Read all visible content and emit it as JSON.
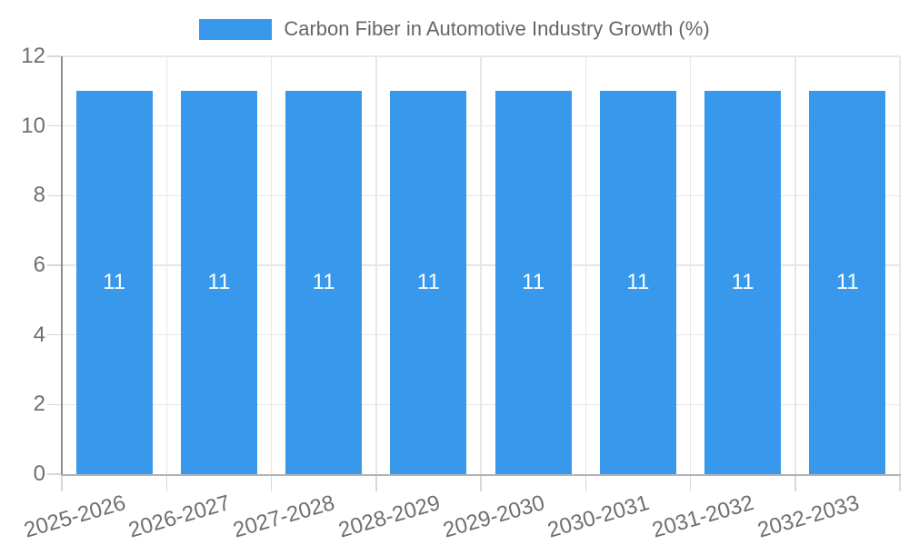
{
  "legend": {
    "label": "Carbon Fiber in Automotive Industry Growth (%)"
  },
  "chart_data": {
    "type": "bar",
    "title": "Carbon Fiber in Automotive Industry Growth (%)",
    "categories": [
      "2025-2026",
      "2026-2027",
      "2027-2028",
      "2028-2029",
      "2029-2030",
      "2030-2031",
      "2031-2032",
      "2032-2033"
    ],
    "series": [
      {
        "name": "Carbon Fiber in Automotive Industry Growth (%)",
        "values": [
          11,
          11,
          11,
          11,
          11,
          11,
          11,
          11
        ]
      }
    ],
    "xlabel": "",
    "ylabel": "",
    "ylim": [
      0,
      12
    ],
    "yticks": [
      0,
      2,
      4,
      6,
      8,
      10,
      12
    ],
    "grid": true,
    "legend_position": "top",
    "x_tick_rotation_deg": -16,
    "bar_value_labels_shown": true,
    "colors": {
      "bar": "#3898EC",
      "bar_label": "#FFFFFF",
      "grid": "#E7E7E7",
      "tick_mark": "#D8D8D8",
      "tick_text": "#6F6F6F",
      "y_axis_border": "#8C8C8C",
      "x_axis_border": "#B3B3B3",
      "legend_text": "#666666"
    }
  }
}
